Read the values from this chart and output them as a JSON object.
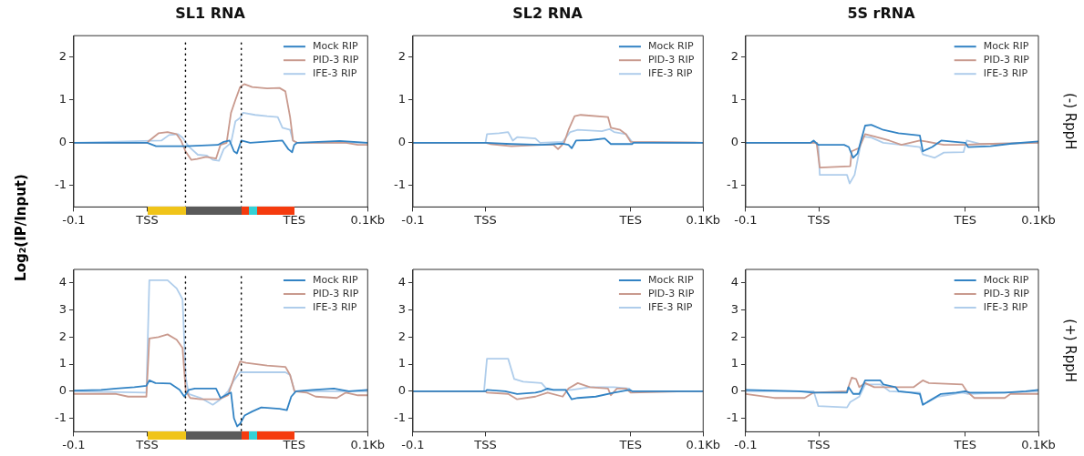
{
  "chart_data": [
    {
      "type": "line",
      "title": "SL1 RNA",
      "ylabel": "Log₂(IP/Input)",
      "legend": "top right",
      "grid": false,
      "xlim": [
        -0.1,
        0.1
      ],
      "xticks": [
        {
          "value": -0.1,
          "label": "-0.1"
        },
        {
          "value": -0.05,
          "label": "TSS"
        },
        {
          "value": 0.05,
          "label": "TES"
        },
        {
          "value": 0.1,
          "label": "0.1Kb"
        }
      ],
      "ylim": [
        -1.5,
        2.5
      ],
      "yticks": [
        -1,
        0,
        1,
        2
      ],
      "ref_lines": [
        {
          "axis": "x",
          "value": -0.024,
          "color": "#000000",
          "line_style": "dotted"
        },
        {
          "axis": "x",
          "value": 0.014,
          "color": "#000000",
          "line_style": "dotted"
        }
      ],
      "series": [
        {
          "name": "Mock RIP",
          "color": "#3283c4",
          "x": [
            -0.1,
            -0.05,
            -0.044,
            -0.024,
            -0.002,
            0.002,
            0.006,
            0.009,
            0.011,
            0.014,
            0.02,
            0.042,
            0.046,
            0.0486,
            0.05,
            0.052,
            0.081,
            0.1
          ],
          "values": [
            0,
            0,
            -0.08,
            -0.08,
            -0.05,
            0.02,
            0.05,
            -0.2,
            -0.25,
            0.05,
            0,
            0.05,
            -0.15,
            -0.22,
            -0.05,
            0,
            0.04,
            0
          ]
        },
        {
          "name": "PID-3 RIP",
          "color": "#c99a8e",
          "x": [
            -0.1,
            -0.05,
            -0.0486,
            -0.0424,
            -0.0362,
            -0.03,
            -0.027,
            -0.024,
            -0.02,
            -0.016,
            -0.01,
            -0.0032,
            -0.0002,
            0.004,
            0.007,
            0.01,
            0.0132,
            0.016,
            0.0214,
            0.0316,
            0.04,
            0.044,
            0.0472,
            0.0492,
            0.052,
            0.0852,
            0.0934,
            0.1
          ],
          "values": [
            0,
            0,
            0.05,
            0.22,
            0.25,
            0.2,
            0.05,
            -0.2,
            -0.4,
            -0.38,
            -0.33,
            -0.37,
            -0.05,
            0,
            0.7,
            1,
            1.3,
            1.37,
            1.3,
            1.27,
            1.28,
            1.2,
            0.6,
            0.05,
            0,
            0,
            -0.05,
            -0.05
          ]
        },
        {
          "name": "IFE-3 RIP",
          "color": "#afcdeb",
          "x": [
            -0.1,
            -0.0404,
            -0.0352,
            -0.029,
            -0.026,
            -0.022,
            -0.0156,
            -0.0094,
            -0.0054,
            -0.0012,
            0.002,
            0.007,
            0.01,
            0.0132,
            0.0152,
            0.0234,
            0.0316,
            0.0388,
            0.042,
            0.0472,
            0.0492,
            0.052,
            0.1
          ],
          "values": [
            0,
            0.05,
            0.18,
            0.2,
            0.12,
            -0.08,
            -0.28,
            -0.3,
            -0.4,
            -0.42,
            -0.15,
            0,
            0.5,
            0.58,
            0.7,
            0.65,
            0.62,
            0.6,
            0.35,
            0.3,
            0.05,
            0,
            0
          ]
        }
      ]
    },
    {
      "type": "line",
      "title": "SL2 RNA",
      "legend": "top right",
      "grid": false,
      "xlim": [
        -0.1,
        0.1
      ],
      "xticks": [
        {
          "value": -0.1,
          "label": "-0.1"
        },
        {
          "value": -0.05,
          "label": "TSS"
        },
        {
          "value": 0.05,
          "label": "TES"
        },
        {
          "value": 0.1,
          "label": "0.1Kb"
        }
      ],
      "ylim": [
        -1.5,
        2.5
      ],
      "yticks": [
        -1,
        0,
        1,
        2
      ],
      "series": [
        {
          "name": "Mock RIP",
          "color": "#3283c4",
          "x": [
            -0.1,
            -0.05,
            -0.0322,
            -0.0114,
            0.0032,
            0.0072,
            0.0094,
            0.0124,
            0.0218,
            0.0322,
            0.0364,
            0.051,
            0.052,
            0.1
          ],
          "values": [
            0,
            0,
            -0.03,
            -0.05,
            -0.02,
            -0.05,
            -0.13,
            0.05,
            0.06,
            0.1,
            -0.03,
            -0.03,
            0,
            0
          ]
        },
        {
          "name": "PID-3 RIP",
          "color": "#c99a8e",
          "x": [
            -0.1,
            -0.05,
            -0.0468,
            -0.0322,
            -0.0114,
            -0.0032,
            0,
            0.0042,
            0.0072,
            0.0114,
            0.0156,
            0.0344,
            0.0364,
            0.0428,
            0.0468,
            0.05,
            0.1
          ],
          "values": [
            0,
            0,
            -0.03,
            -0.08,
            -0.05,
            -0.05,
            -0.15,
            0,
            0.3,
            0.62,
            0.65,
            0.6,
            0.35,
            0.3,
            0.2,
            0.02,
            0
          ]
        },
        {
          "name": "IFE-3 RIP",
          "color": "#afcdeb",
          "x": [
            -0.1,
            -0.05,
            -0.049,
            -0.0406,
            -0.0344,
            -0.0312,
            -0.0282,
            -0.0156,
            -0.0124,
            0.0032,
            0.0084,
            0.0136,
            0.0302,
            0.0354,
            0.0386,
            0.0468,
            0.051,
            0.1
          ],
          "values": [
            0,
            0,
            0.2,
            0.22,
            0.25,
            0.05,
            0.13,
            0.1,
            0,
            0.02,
            0.25,
            0.3,
            0.27,
            0.32,
            0.25,
            0.2,
            0.02,
            0
          ]
        }
      ]
    },
    {
      "type": "line",
      "title": "5S rRNA",
      "annotations": [
        "(-) RppH"
      ],
      "legend": "top right",
      "grid": false,
      "xlim": [
        -0.1,
        0.1
      ],
      "xticks": [
        {
          "value": -0.1,
          "label": "-0.1"
        },
        {
          "value": -0.05,
          "label": "TSS"
        },
        {
          "value": 0.05,
          "label": "TES"
        },
        {
          "value": 0.1,
          "label": "0.1Kb"
        }
      ],
      "ylim": [
        -1.5,
        2.5
      ],
      "yticks": [
        -1,
        0,
        1,
        2
      ],
      "series": [
        {
          "name": "Mock RIP",
          "color": "#3283c4",
          "x": [
            -0.1,
            -0.0556,
            -0.0536,
            -0.0504,
            -0.0328,
            -0.0296,
            -0.0266,
            -0.0236,
            -0.0184,
            -0.0142,
            -0.006,
            0.0044,
            0.019,
            0.021,
            0.0274,
            0.0336,
            0.0398,
            0.05,
            0.052,
            0.0672,
            0.0818,
            0.1
          ],
          "values": [
            0,
            0,
            0.05,
            -0.05,
            -0.05,
            -0.1,
            -0.35,
            -0.25,
            0.4,
            0.42,
            0.3,
            0.22,
            0.17,
            -0.2,
            -0.1,
            0.05,
            0.03,
            0,
            -0.1,
            -0.08,
            -0.02,
            0.03
          ]
        },
        {
          "name": "PID-3 RIP",
          "color": "#c99a8e",
          "x": [
            -0.1,
            -0.052,
            -0.0514,
            -0.0494,
            -0.0286,
            -0.0276,
            -0.0224,
            -0.0184,
            -0.0122,
            -0.0018,
            0.0064,
            0.019,
            0.023,
            0.0354,
            0.05,
            0.0604,
            0.1
          ],
          "values": [
            0,
            0,
            -0.05,
            -0.58,
            -0.55,
            -0.2,
            -0.12,
            0.2,
            0.15,
            0.05,
            -0.05,
            0.05,
            0.03,
            -0.05,
            -0.05,
            -0.03,
            0
          ]
        },
        {
          "name": "IFE-3 RIP",
          "color": "#afcdeb",
          "x": [
            -0.1,
            -0.052,
            -0.0504,
            -0.0494,
            -0.0308,
            -0.029,
            -0.0256,
            -0.0204,
            -0.0142,
            -0.006,
            0.0064,
            0.019,
            0.021,
            0.0292,
            0.0354,
            0.0488,
            0.051,
            0.0604,
            0.1
          ],
          "values": [
            0,
            0,
            -0.05,
            -0.75,
            -0.75,
            -0.95,
            -0.75,
            0.15,
            0.12,
            0,
            -0.05,
            -0.1,
            -0.27,
            -0.35,
            -0.23,
            -0.22,
            0.05,
            -0.03,
            0
          ]
        }
      ]
    },
    {
      "type": "line",
      "legend": "top right",
      "grid": false,
      "xlim": [
        -0.1,
        0.1
      ],
      "xticks": [
        {
          "value": -0.1,
          "label": "-0.1"
        },
        {
          "value": -0.05,
          "label": "TSS"
        },
        {
          "value": 0.05,
          "label": "TES"
        },
        {
          "value": 0.1,
          "label": "0.1Kb"
        }
      ],
      "ylim": [
        -1.5,
        4.5
      ],
      "yticks": [
        -1,
        0,
        1,
        2,
        3,
        4
      ],
      "ref_lines": [
        {
          "axis": "x",
          "value": -0.024,
          "color": "#000000",
          "line_style": "dotted"
        },
        {
          "axis": "x",
          "value": 0.014,
          "color": "#000000",
          "line_style": "dotted"
        }
      ],
      "series": [
        {
          "name": "Mock RIP",
          "color": "#3283c4",
          "x": [
            -0.1,
            -0.0814,
            -0.0712,
            -0.0588,
            -0.0506,
            -0.0486,
            -0.0444,
            -0.0342,
            -0.028,
            -0.0248,
            -0.0218,
            -0.0176,
            -0.0032,
            -0.0002,
            0.005,
            0.007,
            0.009,
            0.0112,
            0.0132,
            0.0162,
            0.0214,
            0.0276,
            0.04,
            0.045,
            0.048,
            0.0512,
            0.0626,
            0.077,
            0.0872,
            0.1
          ],
          "values": [
            0.02,
            0.05,
            0.1,
            0.15,
            0.2,
            0.4,
            0.3,
            0.28,
            0.05,
            -0.2,
            0.05,
            0.1,
            0.1,
            -0.25,
            -0.1,
            -0.05,
            -1,
            -1.3,
            -1.2,
            -0.9,
            -0.75,
            -0.6,
            -0.65,
            -0.7,
            -0.2,
            0,
            0.05,
            0.1,
            0,
            0.05
          ]
        },
        {
          "name": "PID-3 RIP",
          "color": "#c99a8e",
          "x": [
            -0.1,
            -0.0712,
            -0.063,
            -0.0506,
            -0.0486,
            -0.0424,
            -0.0362,
            -0.03,
            -0.026,
            -0.0238,
            -0.0208,
            -0.0136,
            -0.0012,
            0.005,
            0.009,
            0.0132,
            0.0172,
            0.0316,
            0.044,
            0.0472,
            0.0502,
            0.0584,
            0.0646,
            0.079,
            0.0852,
            0.0934,
            0.1
          ],
          "values": [
            -0.1,
            -0.1,
            -0.2,
            -0.2,
            1.95,
            2,
            2.1,
            1.9,
            1.6,
            0,
            -0.25,
            -0.3,
            -0.3,
            -0.15,
            0.5,
            1.1,
            1.05,
            0.95,
            0.9,
            0.6,
            0,
            -0.05,
            -0.2,
            -0.25,
            -0.05,
            -0.15,
            -0.15
          ]
        },
        {
          "name": "IFE-3 RIP",
          "color": "#afcdeb",
          "x": [
            -0.1,
            -0.0506,
            -0.0486,
            -0.0362,
            -0.03,
            -0.026,
            -0.0238,
            -0.0218,
            -0.0136,
            -0.0054,
            -0.0002,
            0.005,
            0.009,
            0.0132,
            0.0316,
            0.044,
            0.0472,
            0.0502,
            0.0626,
            0.1
          ],
          "values": [
            0,
            -0.05,
            4.1,
            4.1,
            3.8,
            3.4,
            0.5,
            -0.1,
            -0.25,
            -0.5,
            -0.3,
            0,
            0.4,
            0.7,
            0.7,
            0.7,
            0.6,
            0,
            0,
            0
          ]
        }
      ]
    },
    {
      "type": "line",
      "legend": "top right",
      "grid": false,
      "xlim": [
        -0.1,
        0.1
      ],
      "xticks": [
        {
          "value": -0.1,
          "label": "-0.1"
        },
        {
          "value": -0.05,
          "label": "TSS"
        },
        {
          "value": 0.05,
          "label": "TES"
        },
        {
          "value": 0.1,
          "label": "0.1Kb"
        }
      ],
      "ylim": [
        -1.5,
        4.5
      ],
      "yticks": [
        -1,
        0,
        1,
        2,
        3,
        4
      ],
      "series": [
        {
          "name": "Mock RIP",
          "color": "#3283c4",
          "x": [
            -0.1,
            -0.05,
            -0.049,
            -0.0364,
            -0.0282,
            -0.0156,
            -0.0114,
            -0.0072,
            -0.0032,
            0.0052,
            0.0094,
            0.0136,
            0.026,
            0.0386,
            0.049,
            0.051,
            0.1
          ],
          "values": [
            0,
            0,
            0.05,
            0,
            -0.1,
            -0.05,
            0,
            0.1,
            0.05,
            0.05,
            -0.3,
            -0.25,
            -0.2,
            -0.05,
            0.05,
            0,
            0
          ]
        },
        {
          "name": "PID-3 RIP",
          "color": "#c99a8e",
          "x": [
            -0.1,
            -0.05,
            -0.049,
            -0.0344,
            -0.0282,
            -0.0156,
            -0.0072,
            0.0032,
            0.0072,
            0.0136,
            0.022,
            0.0344,
            0.0364,
            0.0406,
            0.0468,
            0.05,
            0.0886,
            0.1
          ],
          "values": [
            0,
            0,
            -0.05,
            -0.1,
            -0.3,
            -0.2,
            -0.05,
            -0.2,
            0.1,
            0.3,
            0.15,
            0.1,
            -0.15,
            0.1,
            0.1,
            -0.05,
            0,
            0
          ]
        },
        {
          "name": "IFE-3 RIP",
          "color": "#afcdeb",
          "x": [
            -0.1,
            -0.051,
            -0.049,
            -0.0344,
            -0.0302,
            -0.024,
            -0.0114,
            -0.0072,
            0.0094,
            0.022,
            0.0386,
            0.049,
            0.051,
            0.1
          ],
          "values": [
            0,
            0,
            1.2,
            1.2,
            0.45,
            0.35,
            0.3,
            0.05,
            0.05,
            0.15,
            0.15,
            0.1,
            0,
            0
          ]
        }
      ]
    },
    {
      "type": "line",
      "annotations": [
        "(+) RppH"
      ],
      "legend": "top right",
      "grid": false,
      "xlim": [
        -0.1,
        0.1
      ],
      "xticks": [
        {
          "value": -0.1,
          "label": "-0.1"
        },
        {
          "value": -0.05,
          "label": "TSS"
        },
        {
          "value": 0.05,
          "label": "TES"
        },
        {
          "value": 0.1,
          "label": "0.1Kb"
        }
      ],
      "ylim": [
        -1.5,
        4.5
      ],
      "yticks": [
        -1,
        0,
        1,
        2,
        3,
        4
      ],
      "series": [
        {
          "name": "Mock RIP",
          "color": "#3283c4",
          "x": [
            -0.1,
            -0.0638,
            -0.0536,
            -0.0308,
            -0.0298,
            -0.0266,
            -0.0224,
            -0.0184,
            -0.008,
            -0.006,
            0.0024,
            0.0044,
            0.0128,
            0.019,
            0.021,
            0.0334,
            0.0438,
            0.05,
            0.0532,
            0.077,
            0.0914,
            0.1
          ],
          "values": [
            0.05,
            0,
            -0.05,
            -0.05,
            0.15,
            -0.1,
            -0.1,
            0.4,
            0.4,
            0.25,
            0.15,
            0,
            -0.05,
            -0.1,
            -0.5,
            -0.1,
            -0.05,
            0,
            -0.05,
            -0.05,
            0,
            0.05
          ]
        },
        {
          "name": "PID-3 RIP",
          "color": "#c99a8e",
          "x": [
            -0.1,
            -0.0804,
            -0.0598,
            -0.0536,
            -0.0308,
            -0.0276,
            -0.0246,
            -0.0224,
            -0.0184,
            -0.0122,
            0.0148,
            0.021,
            0.0252,
            0.048,
            0.051,
            0.0562,
            0.077,
            0.081,
            0.1
          ],
          "values": [
            -0.1,
            -0.25,
            -0.25,
            -0.05,
            0,
            0.5,
            0.45,
            0.15,
            0.3,
            0.15,
            0.15,
            0.4,
            0.3,
            0.25,
            0,
            -0.25,
            -0.25,
            -0.1,
            -0.1
          ]
        },
        {
          "name": "IFE-3 RIP",
          "color": "#afcdeb",
          "x": [
            -0.1,
            -0.0536,
            -0.0504,
            -0.0308,
            -0.0286,
            -0.0224,
            -0.0184,
            -0.008,
            -0.0018,
            0.019,
            0.021,
            0.0314,
            0.048,
            0.052,
            0.077,
            0.1
          ],
          "values": [
            0,
            0,
            -0.55,
            -0.6,
            -0.4,
            -0.2,
            0.25,
            0.25,
            0,
            -0.05,
            -0.5,
            -0.2,
            -0.05,
            -0.1,
            -0.05,
            0
          ]
        }
      ]
    }
  ]
}
